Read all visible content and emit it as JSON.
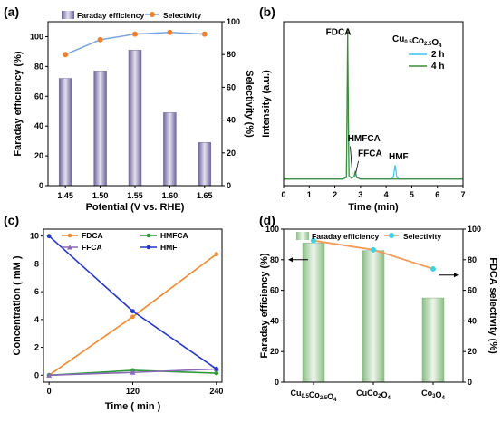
{
  "chart_data": [
    {
      "panel_label": "(a)",
      "type": "bar",
      "categories": [
        "1.45",
        "1.50",
        "1.55",
        "1.60",
        "1.65"
      ],
      "series": [
        {
          "name": "Faraday efficiency",
          "type": "bar",
          "axis": "left",
          "values": [
            72,
            77,
            91,
            49,
            29
          ],
          "color": "#8f86b8"
        },
        {
          "name": "Selectivity",
          "type": "line",
          "axis": "right",
          "values": [
            80,
            89,
            92.5,
            93.5,
            92.5
          ],
          "color": "#f07f2e"
        }
      ],
      "xlabel": "Potential (V vs. RHE)",
      "ylabel": "Faraday efficiency (%)",
      "y2label": "Selectivity (%)",
      "ylim": [
        0,
        110
      ],
      "yticks": [
        0,
        20,
        40,
        60,
        80,
        100
      ],
      "y2lim": [
        0,
        100
      ],
      "y2ticks": [
        0,
        20,
        40,
        60,
        80,
        100
      ],
      "legend_position": "top"
    },
    {
      "panel_label": "(b)",
      "type": "line",
      "xlabel": "Time (min)",
      "ylabel": "Intensity (a.u.)",
      "xlim": [
        0,
        7
      ],
      "xticks": [
        0,
        1,
        2,
        3,
        4,
        5,
        6,
        7
      ],
      "ylim": [
        0,
        100
      ],
      "legend_title": "Cu0.5Co2.5O4",
      "legend_title_parts": [
        "Cu",
        "0.5",
        "Co",
        "2.5",
        "O",
        "4"
      ],
      "legend_position": "top-right",
      "annotations": [
        {
          "text": "FDCA",
          "x": 1.65,
          "y": 92
        },
        {
          "text": "HMFCA",
          "x": 2.5,
          "y": 27
        },
        {
          "text": "FFCA",
          "x": 2.9,
          "y": 18
        },
        {
          "text": "HMF",
          "x": 4.1,
          "y": 16
        }
      ],
      "series": [
        {
          "name": "2 h",
          "color": "#3fc3ee",
          "x": [
            0,
            2.3,
            2.45,
            2.5,
            2.55,
            2.65,
            2.75,
            2.8,
            2.85,
            3.0,
            4.2,
            4.28,
            4.35,
            4.42,
            4.5,
            7
          ],
          "y": [
            4,
            4,
            5,
            68,
            6,
            4.6,
            5.3,
            7,
            5,
            4,
            4,
            5,
            12.5,
            5,
            4,
            4
          ]
        },
        {
          "name": "4 h",
          "color": "#3f8a3a",
          "x": [
            0,
            2.3,
            2.45,
            2.5,
            2.55,
            2.65,
            2.75,
            2.8,
            2.85,
            3.0,
            4.3,
            7
          ],
          "y": [
            4,
            4,
            5,
            96,
            6,
            4.5,
            5.6,
            9,
            5,
            4,
            4,
            4
          ]
        }
      ]
    },
    {
      "panel_label": "(c)",
      "type": "line",
      "xlabel": "Time ( min )",
      "ylabel": "Concentration ( mM )",
      "x": [
        0,
        120,
        240
      ],
      "xlim": [
        -8,
        248
      ],
      "xticks": [
        0,
        120,
        240
      ],
      "ylim": [
        -0.5,
        10.5
      ],
      "yticks": [
        0,
        2,
        4,
        6,
        8,
        10
      ],
      "legend_position": "top",
      "series": [
        {
          "name": "FDCA",
          "color": "#f08a32",
          "marker": "circle",
          "values": [
            0,
            4.2,
            8.7
          ]
        },
        {
          "name": "HMFCA",
          "color": "#2f9a3a",
          "marker": "circle",
          "values": [
            0,
            0.35,
            0.15
          ]
        },
        {
          "name": "FFCA",
          "color": "#8a6ab8",
          "marker": "triangle",
          "values": [
            0,
            0.2,
            0.45
          ]
        },
        {
          "name": "HMF",
          "color": "#2536c9",
          "marker": "circle",
          "values": [
            10,
            4.6,
            0.45
          ]
        }
      ]
    },
    {
      "panel_label": "(d)",
      "type": "bar",
      "categories": [
        "Cu0.5Co2.5O4",
        "CuCo2O4",
        "Co3O4"
      ],
      "category_parts": [
        [
          [
            "Cu",
            ""
          ],
          [
            "0.5",
            "sub"
          ],
          [
            "Co",
            ""
          ],
          [
            "2.5",
            "sub"
          ],
          [
            "O",
            ""
          ],
          [
            "4",
            "sub"
          ]
        ],
        [
          [
            "CuCo",
            ""
          ],
          [
            "2",
            "sub"
          ],
          [
            "O",
            ""
          ],
          [
            "4",
            "sub"
          ]
        ],
        [
          [
            "Co",
            ""
          ],
          [
            "3",
            "sub"
          ],
          [
            "O",
            ""
          ],
          [
            "4",
            "sub"
          ]
        ]
      ],
      "series": [
        {
          "name": "Faraday efficiency",
          "type": "bar",
          "axis": "left",
          "values": [
            91,
            86,
            55
          ],
          "color": "#9dc997"
        },
        {
          "name": "Selectivity",
          "type": "line",
          "axis": "right",
          "values": [
            92.5,
            86.5,
            74
          ],
          "color": "#f29a5c"
        }
      ],
      "ylabel": "Faraday efficiency (%)",
      "y2label": "FDCA selectivity (%)",
      "ylim": [
        0,
        100
      ],
      "yticks": [
        0,
        20,
        40,
        60,
        80,
        100
      ],
      "y2lim": [
        0,
        100
      ],
      "y2ticks": [
        0,
        20,
        40,
        60,
        80,
        100
      ],
      "legend_position": "top"
    }
  ]
}
